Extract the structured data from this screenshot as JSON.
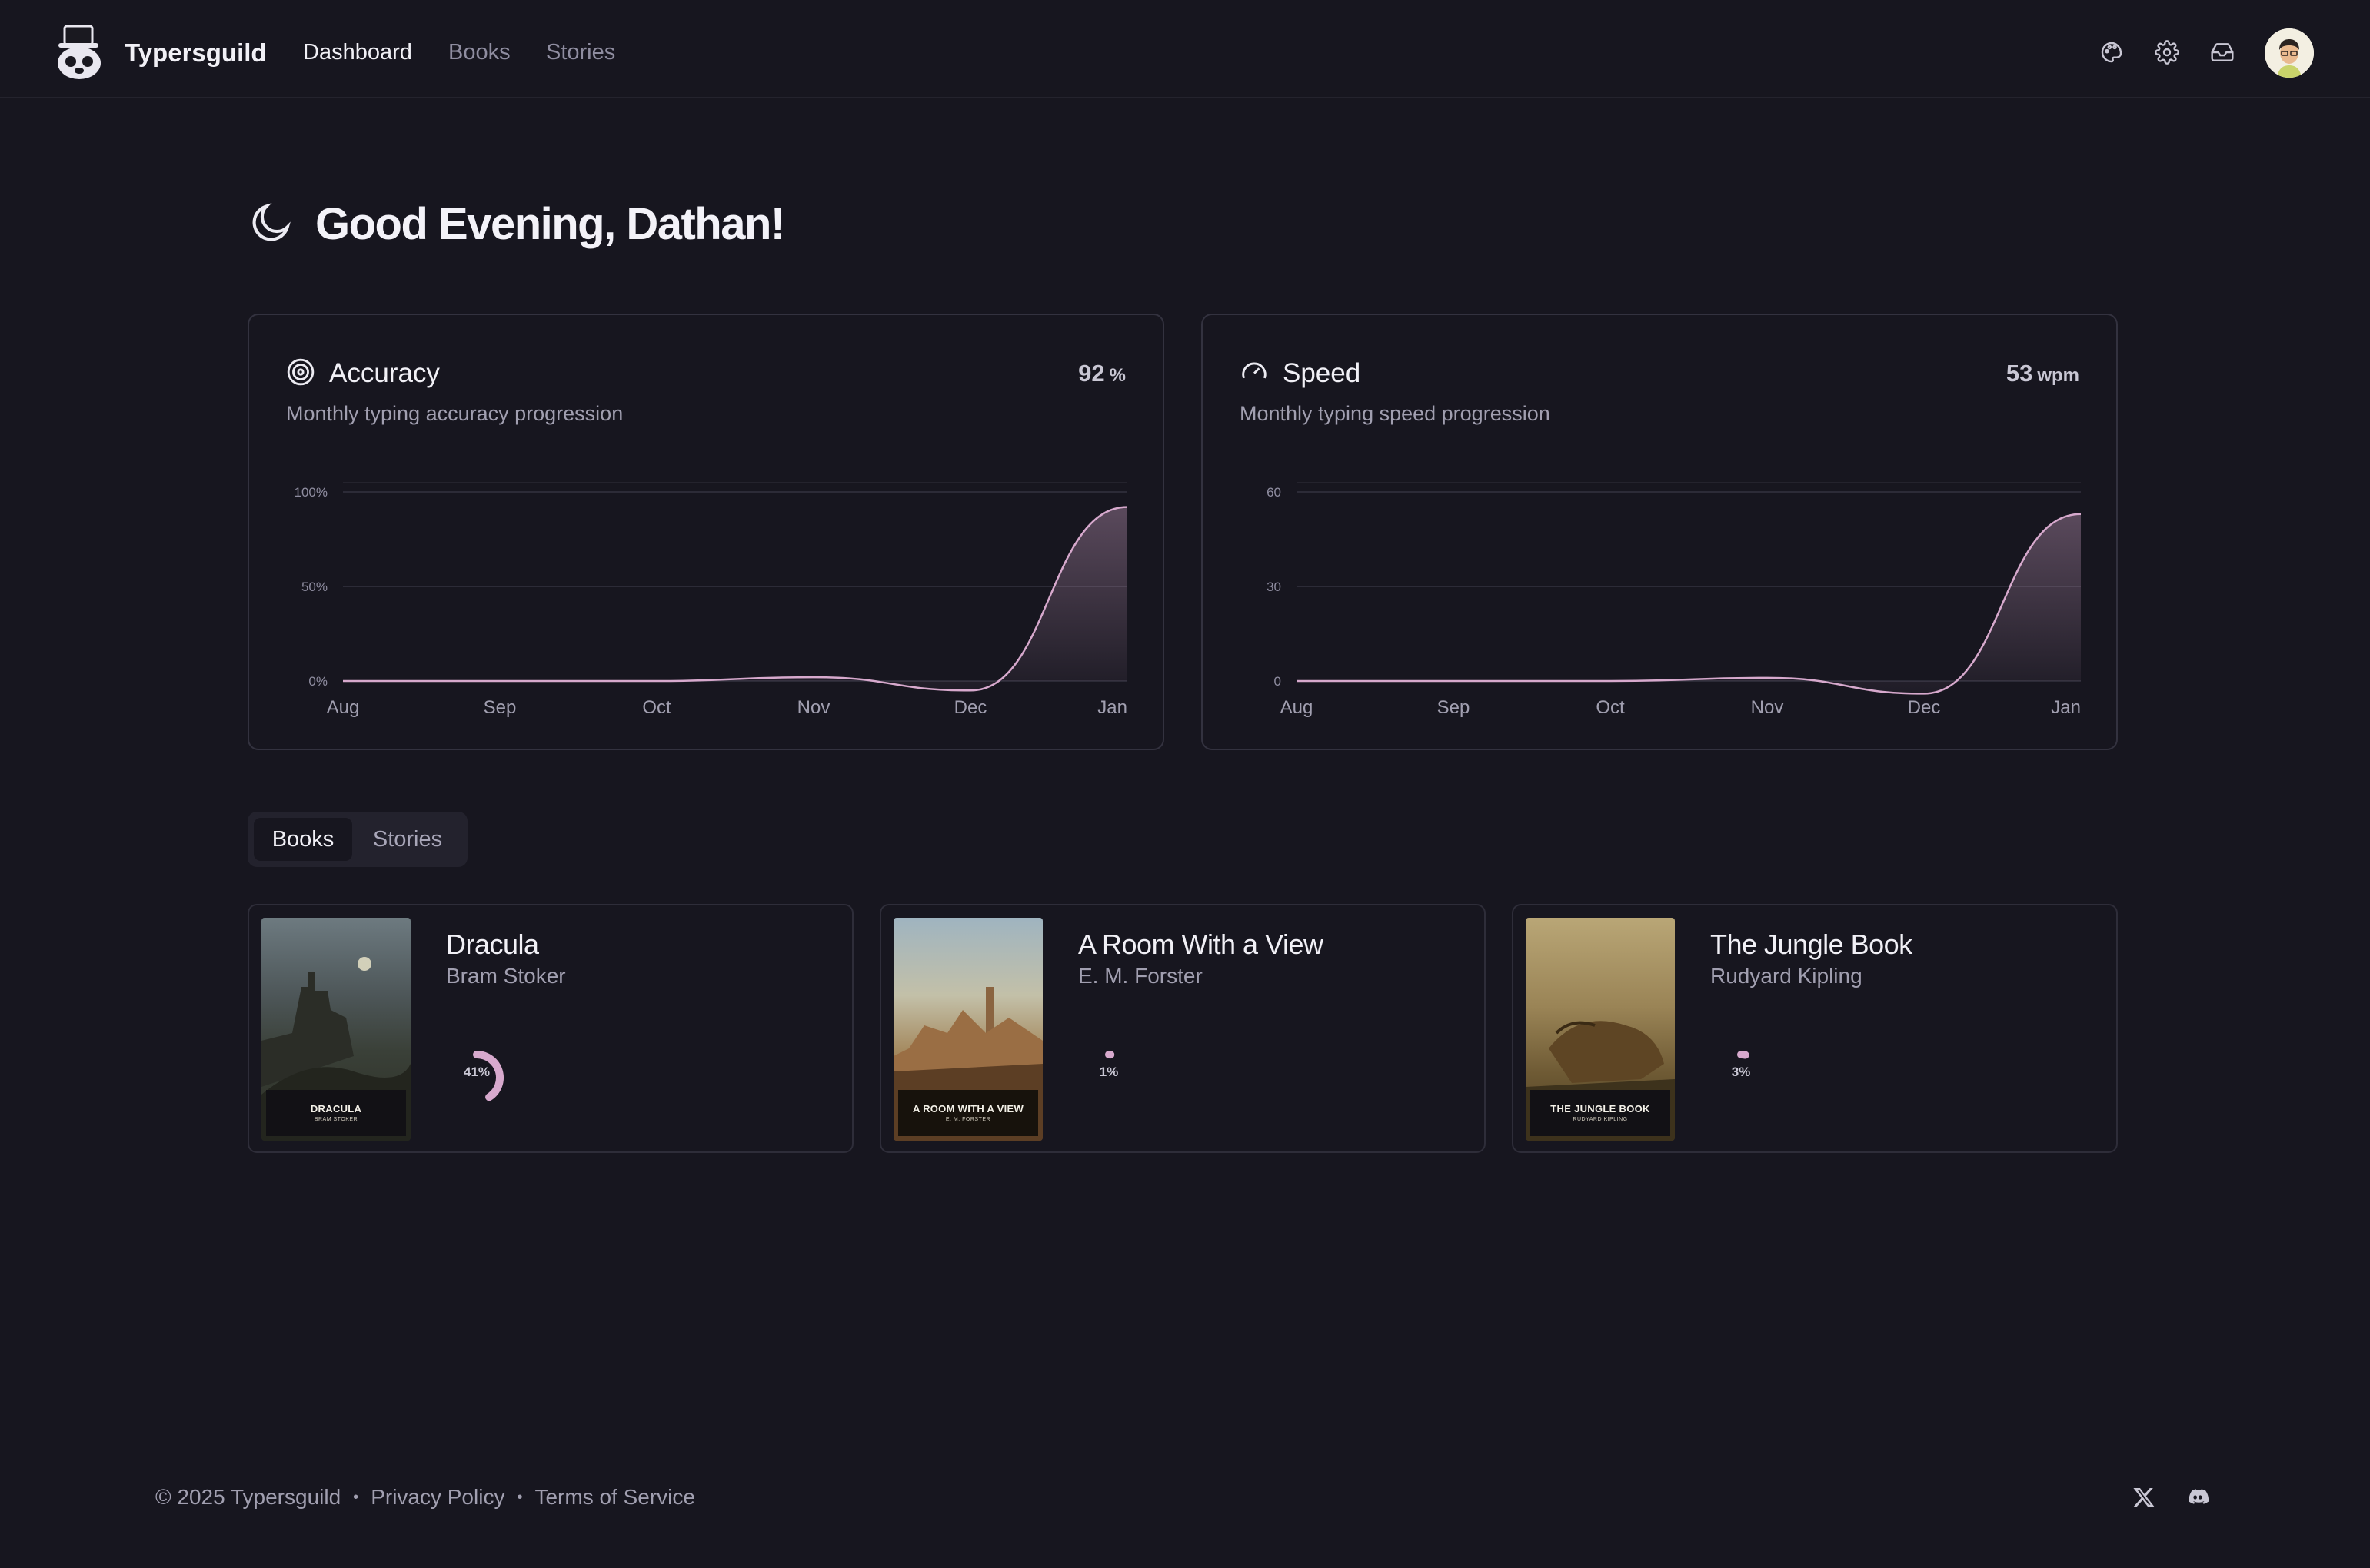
{
  "header": {
    "brand": "Typersguild",
    "nav": [
      {
        "label": "Dashboard"
      },
      {
        "label": "Books"
      },
      {
        "label": "Stories"
      }
    ],
    "icons": [
      "palette-icon",
      "gear-icon",
      "inbox-icon"
    ]
  },
  "greeting": {
    "icon": "moon-icon",
    "text": "Good Evening, Dathan!"
  },
  "stats": [
    {
      "title": "Accuracy",
      "icon": "target-icon",
      "value": "92",
      "unit": "%",
      "subtitle": "Monthly typing accuracy progression"
    },
    {
      "title": "Speed",
      "icon": "speedometer-icon",
      "value": "53",
      "unit": "wpm",
      "subtitle": "Monthly typing speed progression"
    }
  ],
  "chart_data": [
    {
      "type": "area",
      "x": [
        "Aug",
        "Sep",
        "Oct",
        "Nov",
        "Dec",
        "Jan"
      ],
      "y_ticks": [
        "100%",
        "50%",
        "0%"
      ],
      "ylim": [
        0,
        100
      ],
      "values": [
        0,
        0,
        0,
        2,
        -5,
        92
      ],
      "grid": true,
      "color": "#d7a9cd"
    },
    {
      "type": "area",
      "x": [
        "Aug",
        "Sep",
        "Oct",
        "Nov",
        "Dec",
        "Jan"
      ],
      "y_ticks": [
        "60",
        "30",
        "0"
      ],
      "ylim": [
        0,
        60
      ],
      "values": [
        0,
        0,
        0,
        1,
        -4,
        53
      ],
      "grid": true,
      "color": "#d7a9cd"
    }
  ],
  "tabs": [
    {
      "label": "Books",
      "active": true
    },
    {
      "label": "Stories",
      "active": false
    }
  ],
  "books": [
    {
      "title": "Dracula",
      "author": "Bram Stoker",
      "progress": 41,
      "progress_label": "41%",
      "cover_title": "DRACULA",
      "cover_author": "BRAM STOKER"
    },
    {
      "title": "A Room With a View",
      "author": "E. M. Forster",
      "progress": 1,
      "progress_label": "1%",
      "cover_title": "A ROOM WITH A VIEW",
      "cover_author": "E. M. FORSTER"
    },
    {
      "title": "The Jungle Book",
      "author": "Rudyard Kipling",
      "progress": 3,
      "progress_label": "3%",
      "cover_title": "THE JUNGLE BOOK",
      "cover_author": "RUDYARD KIPLING"
    }
  ],
  "footer": {
    "copyright": "© 2025 Typersguild",
    "links": [
      {
        "label": "Privacy Policy"
      },
      {
        "label": "Terms of Service"
      }
    ],
    "social": [
      "x-icon",
      "discord-icon"
    ]
  }
}
